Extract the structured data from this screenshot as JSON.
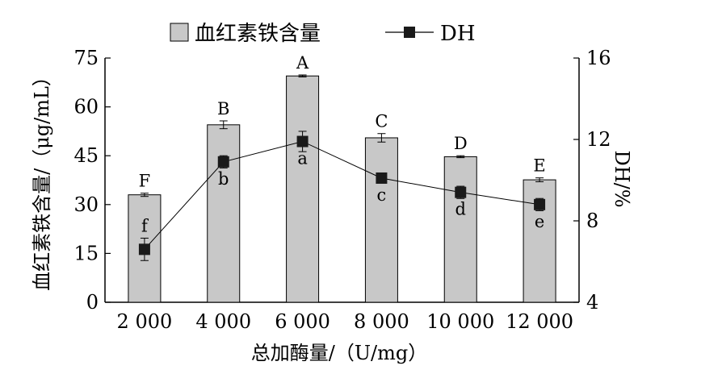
{
  "chart_data": {
    "type": "bar",
    "categories": [
      "2 000",
      "4 000",
      "6 000",
      "8 000",
      "10 000",
      "12 000"
    ],
    "xlabel": "总加酶量/（U/mg）",
    "ylabel_left": "血红素铁含量/（μg/mL）",
    "ylabel_right": "DH/%",
    "ylim_left": [
      0,
      75
    ],
    "yticks_left": [
      "0",
      "15",
      "30",
      "45",
      "60",
      "75"
    ],
    "ylim_right": [
      4,
      16
    ],
    "yticks_right": [
      "4",
      "8",
      "12",
      "16"
    ],
    "grid": false,
    "legend_position": "top",
    "series": [
      {
        "name": "血红素铁含量",
        "type": "bar",
        "axis": "left",
        "color": "#c8c8c8",
        "values": [
          33.0,
          54.5,
          69.5,
          50.5,
          44.7,
          37.6
        ],
        "errors": [
          0.5,
          1.2,
          0.3,
          1.3,
          0.3,
          0.6
        ],
        "letters": [
          "F",
          "B",
          "A",
          "C",
          "D",
          "E"
        ]
      },
      {
        "name": "DH",
        "type": "line",
        "axis": "right",
        "color": "#000000",
        "values": [
          6.6,
          10.9,
          11.9,
          10.1,
          9.4,
          8.8
        ],
        "errors": [
          0.55,
          0.3,
          0.5,
          0.15,
          0.3,
          0.3
        ],
        "letters": [
          "f",
          "b",
          "a",
          "c",
          "d",
          "e"
        ]
      }
    ]
  }
}
